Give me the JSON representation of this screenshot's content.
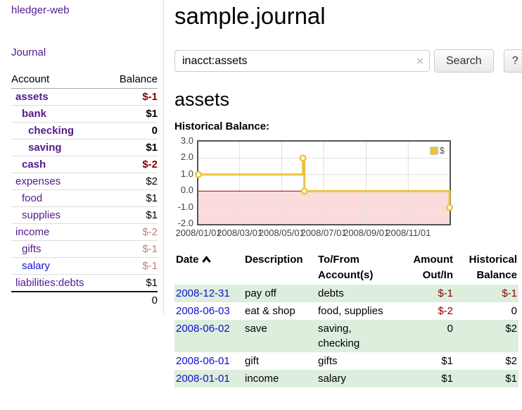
{
  "sidebar": {
    "brand": "hledger-web",
    "nav": {
      "journal": "Journal"
    },
    "table": {
      "account_header": "Account",
      "balance_header": "Balance"
    },
    "accounts": [
      {
        "name": "assets",
        "level": 1,
        "bold": true,
        "link_color": "purple",
        "balance": "$-1",
        "balance_style": "neg"
      },
      {
        "name": "bank",
        "level": 2,
        "bold": true,
        "link_color": "purple",
        "balance": "$1",
        "balance_style": "pos"
      },
      {
        "name": "checking",
        "level": 3,
        "bold": true,
        "link_color": "purple",
        "balance": "0",
        "balance_style": "pos"
      },
      {
        "name": "saving",
        "level": 3,
        "bold": true,
        "link_color": "purple",
        "balance": "$1",
        "balance_style": "pos"
      },
      {
        "name": "cash",
        "level": 2,
        "bold": true,
        "link_color": "purple",
        "balance": "$-2",
        "balance_style": "neg"
      },
      {
        "name": "expenses",
        "level": 1,
        "bold": false,
        "link_color": "purple",
        "balance": "$2",
        "balance_style": "pos"
      },
      {
        "name": "food",
        "level": 2,
        "bold": false,
        "link_color": "purple",
        "balance": "$1",
        "balance_style": "pos"
      },
      {
        "name": "supplies",
        "level": 2,
        "bold": false,
        "link_color": "purple",
        "balance": "$1",
        "balance_style": "pos"
      },
      {
        "name": "income",
        "level": 1,
        "bold": false,
        "link_color": "purple",
        "balance": "$-2",
        "balance_style": "neg-dim"
      },
      {
        "name": "gifts",
        "level": 2,
        "bold": false,
        "link_color": "purple",
        "balance": "$-1",
        "balance_style": "neg-dim"
      },
      {
        "name": "salary",
        "level": 2,
        "bold": false,
        "link_color": "blue",
        "balance": "$-1",
        "balance_style": "neg-dim"
      },
      {
        "name": "liabilities:debts",
        "level": 1,
        "bold": false,
        "link_color": "purple",
        "balance": "$1",
        "balance_style": "pos"
      }
    ],
    "total": "0"
  },
  "header": {
    "title": "sample.journal"
  },
  "search": {
    "value": "inacct:assets",
    "clear_icon": "×",
    "button_label": "Search",
    "help_label": "?"
  },
  "account_page": {
    "title": "assets",
    "chart_label": "Historical Balance:"
  },
  "chart_data": {
    "type": "line",
    "title": "Historical Balance",
    "step": true,
    "legend": "$",
    "legend_position": "top-right",
    "series": [
      {
        "name": "$",
        "color": "#edc240",
        "points": [
          {
            "date": "2008-01-01",
            "value": 1
          },
          {
            "date": "2008-06-01",
            "value": 2
          },
          {
            "date": "2008-06-03",
            "value": 0
          },
          {
            "date": "2008-12-31",
            "value": -1
          }
        ]
      }
    ],
    "x_range": [
      "2008-01-01",
      "2008-12-31"
    ],
    "x_ticks": [
      "2008/01/01",
      "2008/03/01",
      "2008/05/01",
      "2008/07/01",
      "2008/09/01",
      "2008/11/01"
    ],
    "ylim": [
      -2,
      3
    ],
    "y_ticks": [
      3.0,
      2.0,
      1.0,
      0.0,
      -1.0,
      -2.0
    ],
    "grid": true,
    "negative_region_color": "#fbdcdc",
    "zero_line_color": "#a40000",
    "grid_border_color": "#545454",
    "grid_line_color": "#e0e0e0"
  },
  "register": {
    "columns": [
      "Date",
      "Description",
      "To/From Account(s)",
      "Amount Out/In",
      "Historical Balance"
    ],
    "sort": {
      "column": "Date",
      "direction": "asc"
    },
    "rows": [
      {
        "date": "2008-12-31",
        "description": "pay off",
        "accounts": [
          "debts"
        ],
        "amount": "$-1",
        "amount_neg": true,
        "balance": "$-1",
        "balance_neg": true
      },
      {
        "date": "2008-06-03",
        "description": "eat & shop",
        "accounts": [
          "food, supplies"
        ],
        "amount": "$-2",
        "amount_neg": true,
        "balance": "0",
        "balance_neg": false
      },
      {
        "date": "2008-06-02",
        "description": "save",
        "accounts": [
          "saving,",
          "checking"
        ],
        "amount": "0",
        "amount_neg": false,
        "balance": "$2",
        "balance_neg": false
      },
      {
        "date": "2008-06-01",
        "description": "gift",
        "accounts": [
          "gifts"
        ],
        "amount": "$1",
        "amount_neg": false,
        "balance": "$2",
        "balance_neg": false
      },
      {
        "date": "2008-01-01",
        "description": "income",
        "accounts": [
          "salary"
        ],
        "amount": "$1",
        "amount_neg": false,
        "balance": "$1",
        "balance_neg": false
      }
    ]
  },
  "colors": {
    "purple_link": "#551a8b",
    "blue_link": "#1414d2",
    "negative": "#8b0000",
    "negative_dim": "#c87e7e",
    "row_green": "#ddeedd",
    "chart_line_yellow": "#edc240"
  }
}
